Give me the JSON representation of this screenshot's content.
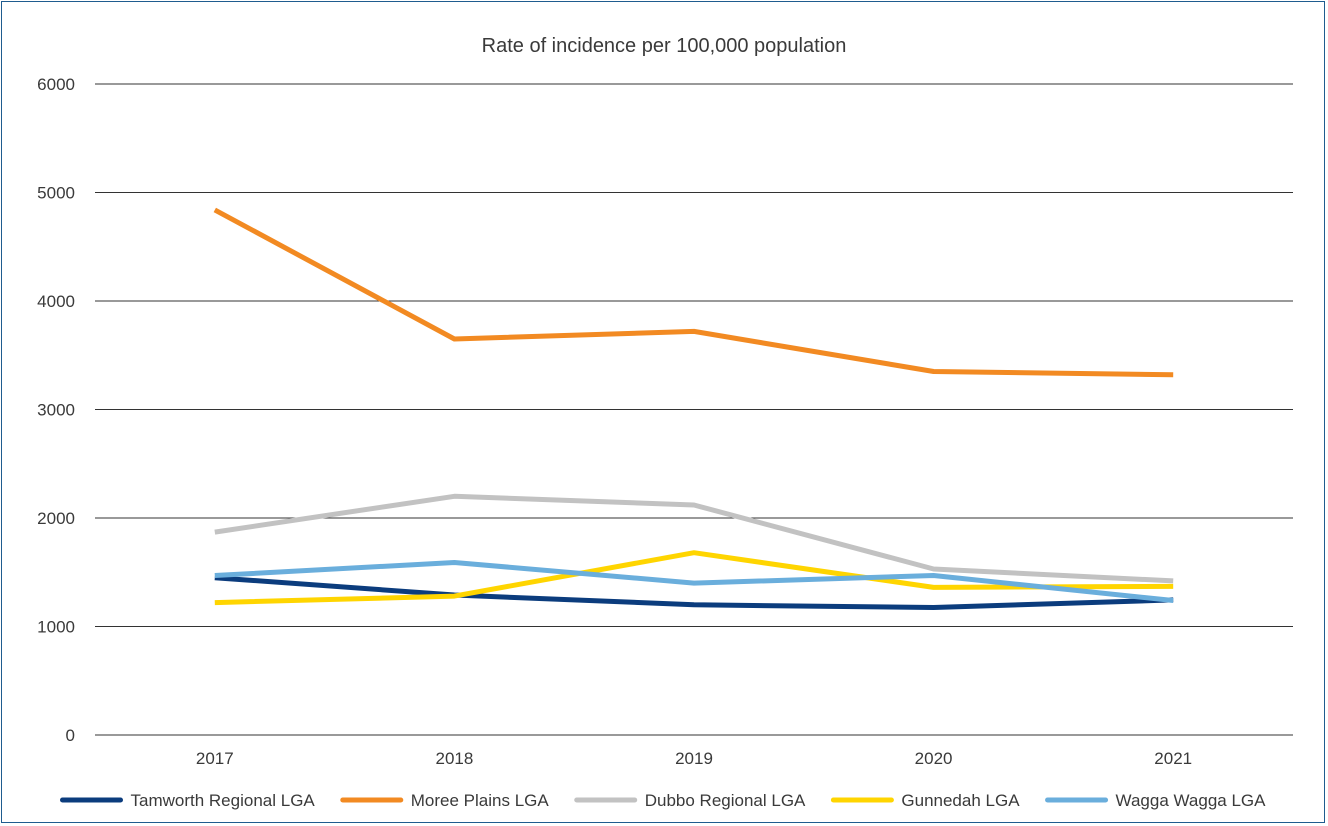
{
  "chart_data": {
    "type": "line",
    "title": "Rate of incidence per 100,000 population",
    "xlabel": "",
    "ylabel": "",
    "categories": [
      "2017",
      "2018",
      "2019",
      "2020",
      "2021"
    ],
    "ylim": [
      0,
      6000
    ],
    "yticks": [
      "0",
      "1000",
      "2000",
      "3000",
      "4000",
      "5000",
      "6000"
    ],
    "grid": true,
    "legend_position": "bottom",
    "series": [
      {
        "name": "Tamworth Regional LGA",
        "color": "#0b3c7d",
        "values": [
          1450,
          1290,
          1200,
          1175,
          1245
        ]
      },
      {
        "name": "Moree Plains LGA",
        "color": "#f28a22",
        "values": [
          4840,
          3650,
          3720,
          3350,
          3320
        ]
      },
      {
        "name": "Dubbo Regional LGA",
        "color": "#c2c2c2",
        "values": [
          1870,
          2200,
          2120,
          1530,
          1420
        ]
      },
      {
        "name": "Gunnedah LGA",
        "color": "#ffd500",
        "values": [
          1220,
          1280,
          1680,
          1360,
          1370
        ]
      },
      {
        "name": "Wagga Wagga LGA",
        "color": "#6aaedc",
        "values": [
          1470,
          1590,
          1400,
          1470,
          1240
        ]
      }
    ]
  }
}
